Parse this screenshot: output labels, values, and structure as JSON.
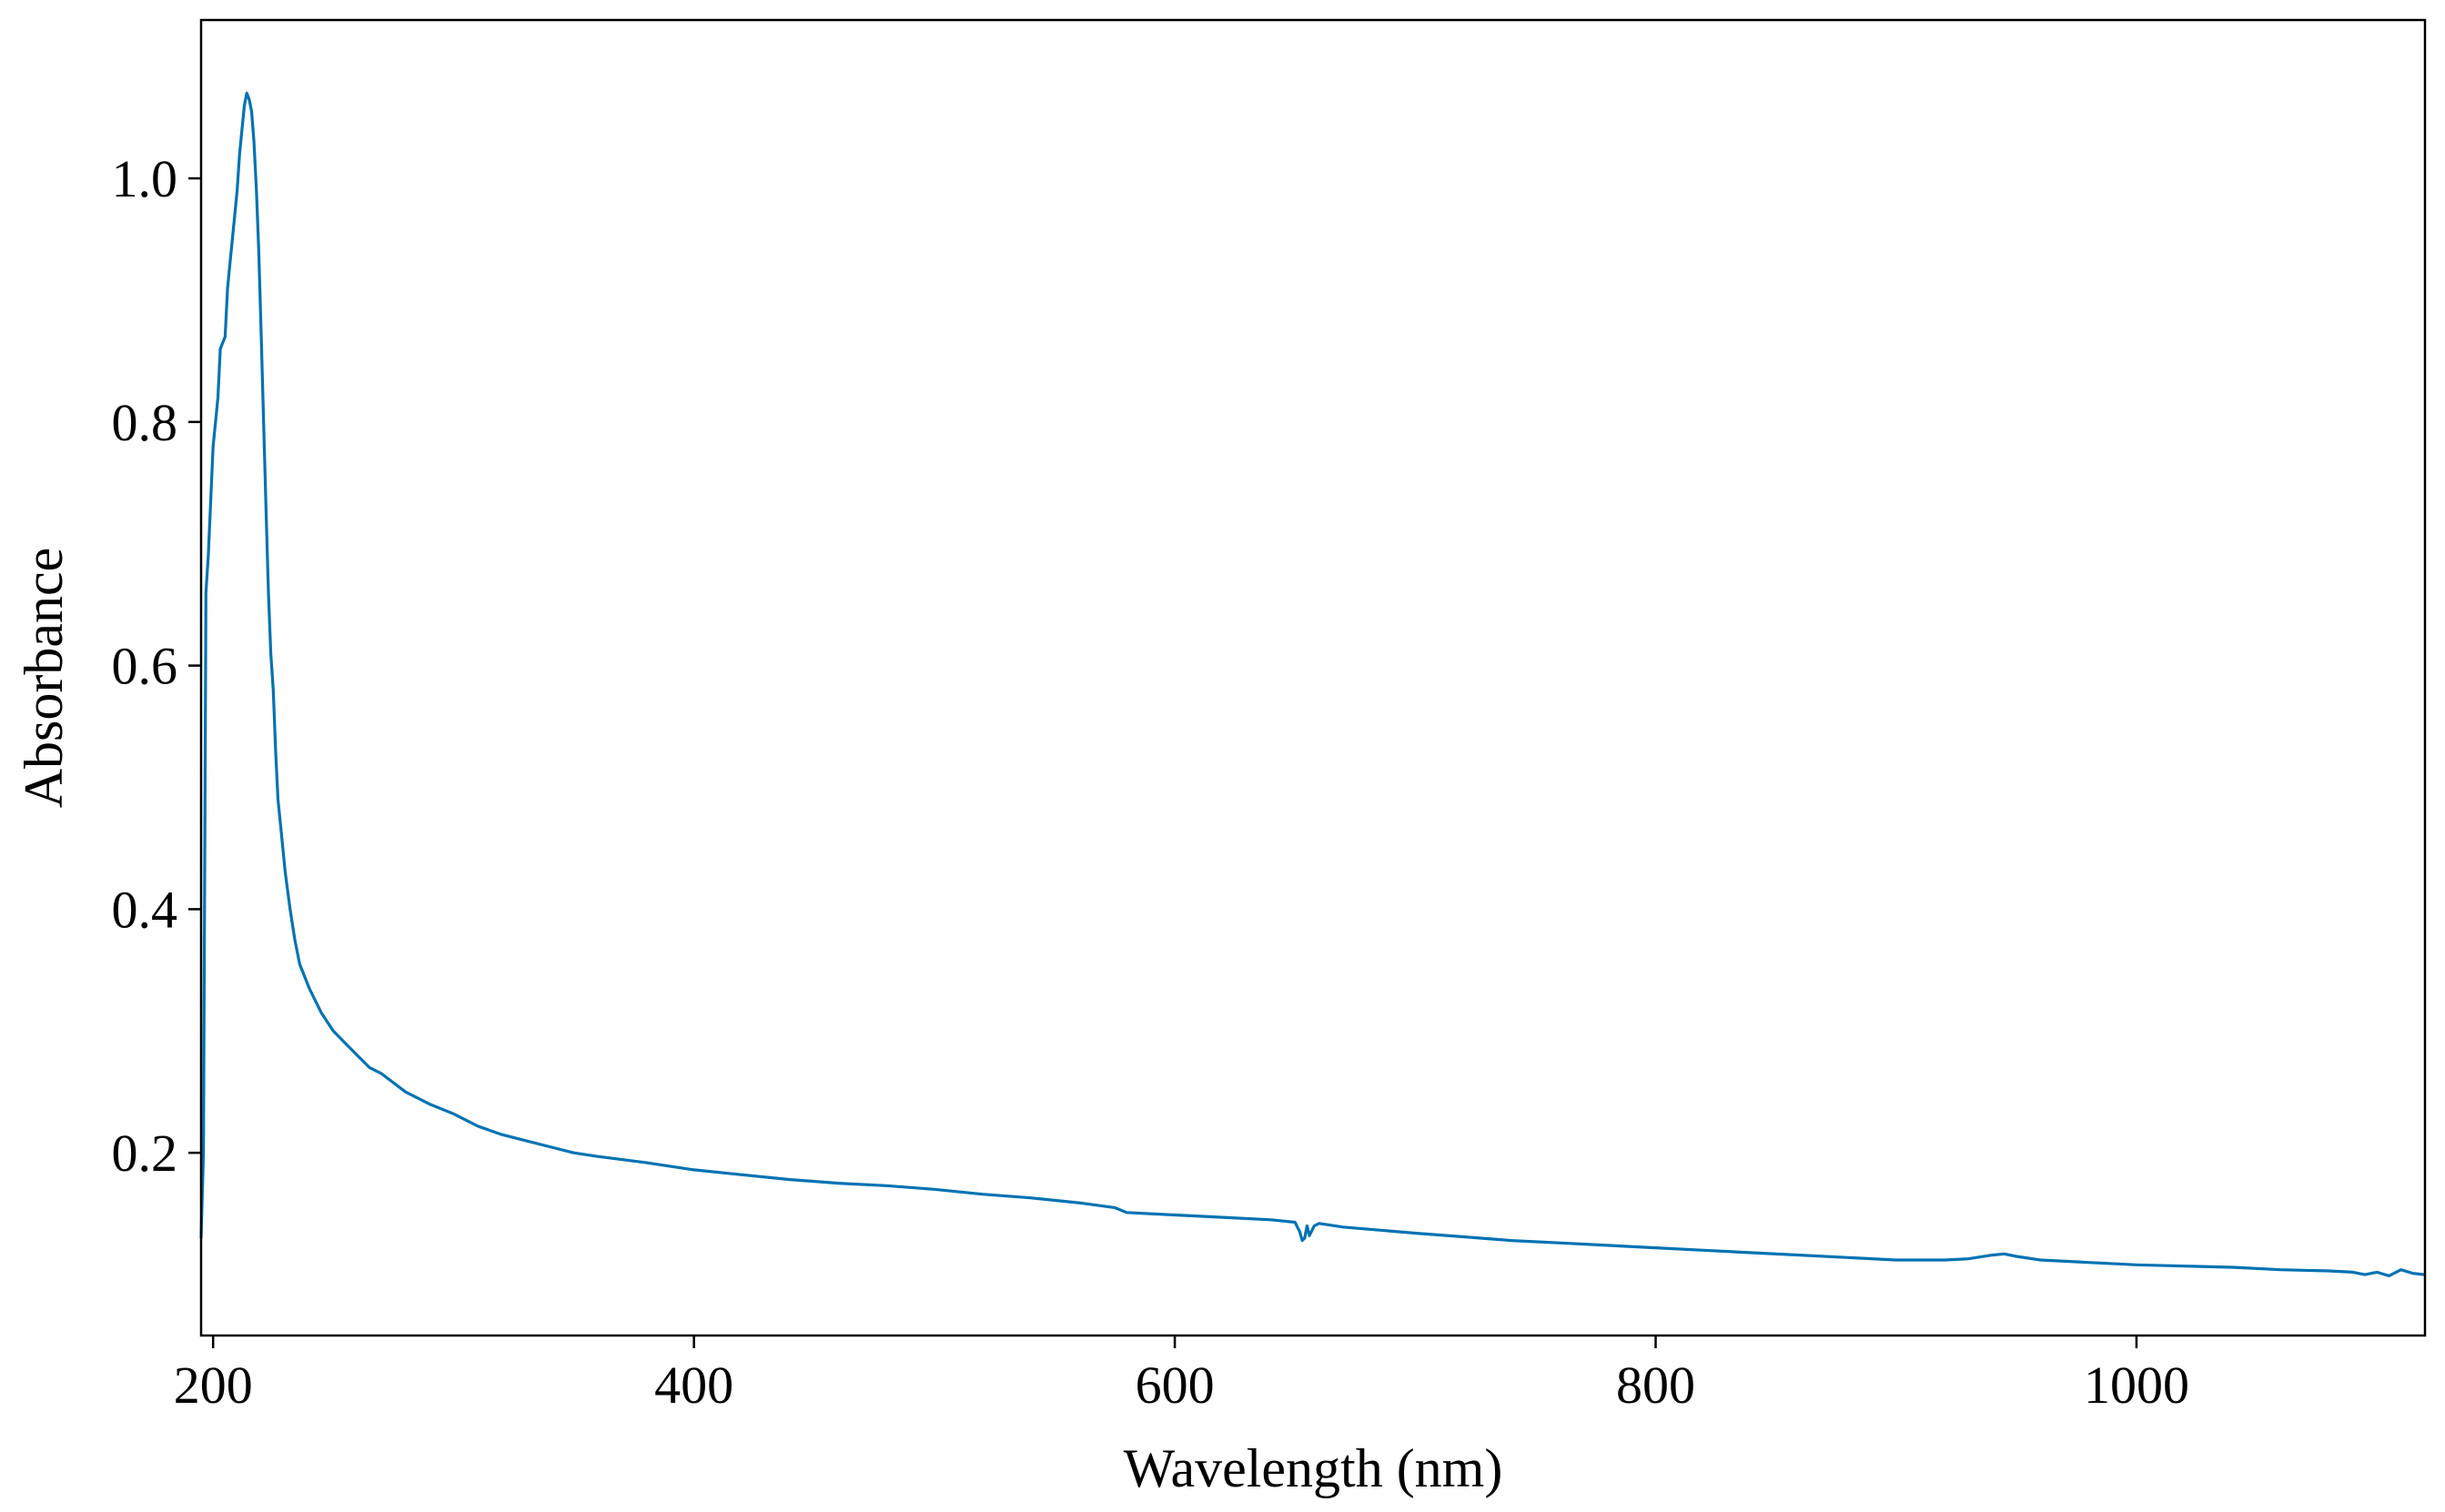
{
  "chart_data": {
    "type": "line",
    "title": "",
    "xlabel": "Wavelength (nm)",
    "ylabel": "Absorbance",
    "xlim": [
      195,
      1120
    ],
    "ylim": [
      0.05,
      1.13
    ],
    "x_ticks": [
      200,
      400,
      600,
      800,
      1000
    ],
    "x_tick_labels": [
      "200",
      "400",
      "600",
      "800",
      "1000"
    ],
    "y_ticks": [
      0.2,
      0.4,
      0.6,
      0.8,
      1.0
    ],
    "y_tick_labels": [
      "0.2",
      "0.4",
      "0.6",
      "0.8",
      "1.0"
    ],
    "grid": false,
    "legend": "none",
    "series": [
      {
        "color": "#0072b2",
        "x": [
          195,
          196,
          197,
          198,
          200,
          202,
          203,
          205,
          206,
          207,
          209,
          210,
          211,
          212,
          213,
          214,
          215,
          216,
          217,
          218,
          219,
          220,
          221,
          222,
          223,
          224,
          225,
          226,
          227,
          228,
          230,
          232,
          234,
          236,
          238,
          240,
          245,
          250,
          255,
          260,
          265,
          270,
          280,
          290,
          300,
          310,
          320,
          330,
          340,
          350,
          360,
          380,
          400,
          420,
          440,
          460,
          480,
          500,
          520,
          540,
          560,
          575,
          580,
          600,
          620,
          640,
          650,
          652,
          653,
          654,
          655,
          656,
          658,
          660,
          670,
          700,
          720,
          740,
          760,
          780,
          800,
          820,
          840,
          860,
          880,
          900,
          920,
          930,
          940,
          945,
          950,
          960,
          980,
          1000,
          1020,
          1040,
          1060,
          1080,
          1090,
          1095,
          1100,
          1105,
          1110,
          1115,
          1120
        ],
        "y": [
          0.13,
          0.2,
          0.66,
          0.69,
          0.78,
          0.82,
          0.86,
          0.87,
          0.91,
          0.93,
          0.97,
          0.99,
          1.02,
          1.04,
          1.06,
          1.07,
          1.065,
          1.055,
          1.03,
          0.99,
          0.94,
          0.87,
          0.8,
          0.73,
          0.66,
          0.61,
          0.58,
          0.53,
          0.49,
          0.47,
          0.43,
          0.4,
          0.375,
          0.355,
          0.345,
          0.335,
          0.315,
          0.3,
          0.29,
          0.28,
          0.27,
          0.265,
          0.25,
          0.24,
          0.232,
          0.222,
          0.215,
          0.21,
          0.205,
          0.2,
          0.197,
          0.192,
          0.186,
          0.182,
          0.178,
          0.175,
          0.173,
          0.17,
          0.166,
          0.163,
          0.159,
          0.155,
          0.151,
          0.149,
          0.147,
          0.145,
          0.143,
          0.135,
          0.128,
          0.13,
          0.14,
          0.132,
          0.14,
          0.142,
          0.139,
          0.134,
          0.131,
          0.128,
          0.126,
          0.124,
          0.122,
          0.12,
          0.118,
          0.116,
          0.114,
          0.112,
          0.112,
          0.113,
          0.116,
          0.117,
          0.115,
          0.112,
          0.11,
          0.108,
          0.107,
          0.106,
          0.104,
          0.103,
          0.102,
          0.1,
          0.102,
          0.099,
          0.104,
          0.101,
          0.1
        ]
      }
    ]
  }
}
